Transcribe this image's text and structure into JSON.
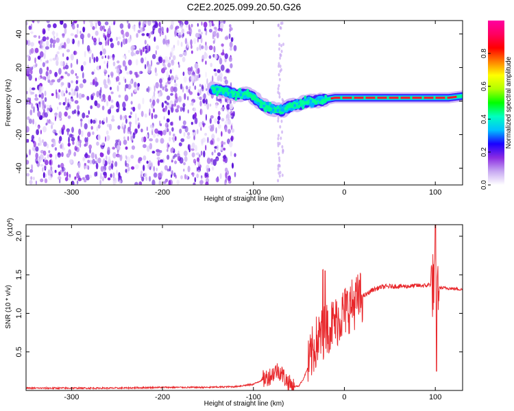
{
  "title": "C2E2.2025.099.20.50.G26",
  "chart_data": [
    {
      "type": "heatmap",
      "xlabel": "Height of straight line (km)",
      "ylabel": "Frequency (Hz)",
      "xlim": [
        -350,
        130
      ],
      "ylim": [
        -50,
        48
      ],
      "xticks": [
        -300,
        -200,
        -100,
        0,
        100
      ],
      "yticks": [
        -40,
        -20,
        0,
        20,
        40
      ],
      "colorbar": {
        "label": "Normalized spectral amplitude",
        "range": [
          0,
          1
        ],
        "ticks": [
          "0.0",
          "0.2",
          "0.4",
          "0.6",
          "0.8"
        ],
        "colors": [
          "#ffffff",
          "#c7a8f2",
          "#8a2be2",
          "#1a00ff",
          "#00c0ff",
          "#00ffc0",
          "#00ff00",
          "#b0ff00",
          "#ffff00",
          "#ff8000",
          "#ff0000",
          "#ff0060",
          "#ff00a0"
        ]
      },
      "noise_region_x": [
        -350,
        -120
      ],
      "signal_ridge": [
        {
          "x": -145,
          "y": 7
        },
        {
          "x": -130,
          "y": 6
        },
        {
          "x": -120,
          "y": 4
        },
        {
          "x": -105,
          "y": 4
        },
        {
          "x": -95,
          "y": 0
        },
        {
          "x": -85,
          "y": -4
        },
        {
          "x": -75,
          "y": -5
        },
        {
          "x": -68,
          "y": -6
        },
        {
          "x": -60,
          "y": -3
        },
        {
          "x": -50,
          "y": -2
        },
        {
          "x": -40,
          "y": 0
        },
        {
          "x": -30,
          "y": 0
        },
        {
          "x": -20,
          "y": 1
        },
        {
          "x": -10,
          "y": 2
        },
        {
          "x": 0,
          "y": 2
        },
        {
          "x": 20,
          "y": 2
        },
        {
          "x": 40,
          "y": 2
        },
        {
          "x": 60,
          "y": 2
        },
        {
          "x": 80,
          "y": 2
        },
        {
          "x": 100,
          "y": 2
        },
        {
          "x": 115,
          "y": 2
        },
        {
          "x": 130,
          "y": 3
        }
      ]
    },
    {
      "type": "line",
      "xlabel": "Height of straight line (km)",
      "ylabel": "SNR (10 * v/v)",
      "yscale_label": "(x10",
      "yscale_exp": "4",
      "yscale_close": ")",
      "xlim": [
        -350,
        130
      ],
      "ylim": [
        0,
        2.15
      ],
      "xticks": [
        -300,
        -200,
        -100,
        0,
        100
      ],
      "yticks": [
        "0.5",
        "1.0",
        "1.5",
        "2.0"
      ],
      "color": "#e8262a",
      "series": [
        {
          "x": [
            -350,
            -300,
            -250,
            -200,
            -150,
            -120,
            -100,
            -90,
            -80,
            -75,
            -70,
            -65,
            -60,
            -55,
            -50,
            -45,
            -40,
            -35,
            -30,
            -25,
            -20,
            -15,
            -10,
            -5,
            0,
            5,
            10,
            15,
            20,
            25,
            30,
            40,
            50,
            60,
            70,
            80,
            90,
            95,
            100,
            102,
            105,
            110,
            120,
            130
          ],
          "y": [
            0.03,
            0.03,
            0.03,
            0.04,
            0.04,
            0.05,
            0.08,
            0.14,
            0.2,
            0.26,
            0.24,
            0.15,
            0.08,
            0.05,
            0.06,
            0.15,
            0.3,
            0.5,
            0.65,
            0.72,
            0.8,
            0.85,
            0.88,
            0.95,
            1.02,
            1.08,
            1.12,
            1.18,
            1.22,
            1.25,
            1.3,
            1.34,
            1.35,
            1.35,
            1.35,
            1.36,
            1.36,
            1.38,
            1.35,
            1.33,
            1.33,
            1.33,
            1.32,
            1.31
          ]
        }
      ]
    }
  ]
}
